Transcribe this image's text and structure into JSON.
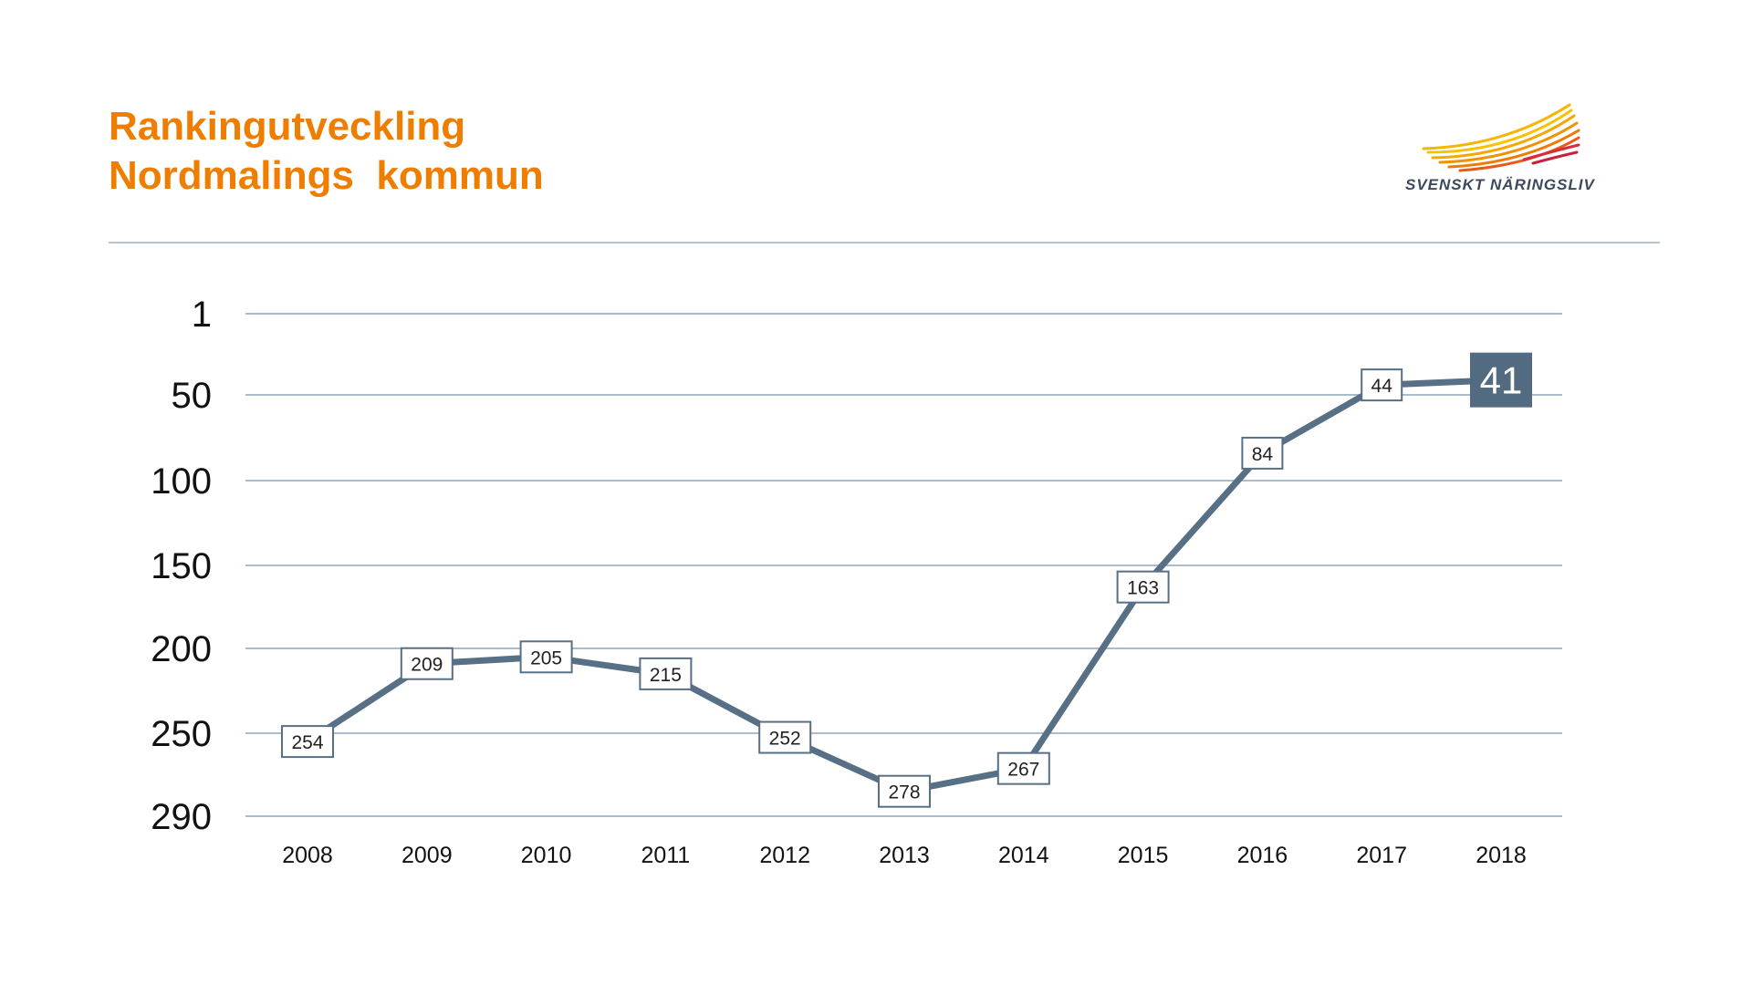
{
  "header": {
    "title_line1": "Rankingutveckling",
    "title_line2": "Nordmalings  kommun",
    "logo_text": "SVENSKT NÄRINGSLIV"
  },
  "colors": {
    "title": "#ef7d00",
    "line": "#587085",
    "grid": "#a9bccb",
    "highlight_box": "#536b80"
  },
  "chart_data": {
    "type": "line",
    "title": "",
    "xlabel": "",
    "ylabel": "",
    "y_inverted": true,
    "yticks": [
      1,
      50,
      100,
      150,
      200,
      250,
      290
    ],
    "ylim": [
      1,
      290
    ],
    "grid": true,
    "categories": [
      "2008",
      "2009",
      "2010",
      "2011",
      "2012",
      "2013",
      "2014",
      "2015",
      "2016",
      "2017",
      "2018"
    ],
    "values": [
      254,
      209,
      205,
      215,
      252,
      278,
      267,
      163,
      84,
      44,
      41
    ],
    "highlighted_last": true
  }
}
